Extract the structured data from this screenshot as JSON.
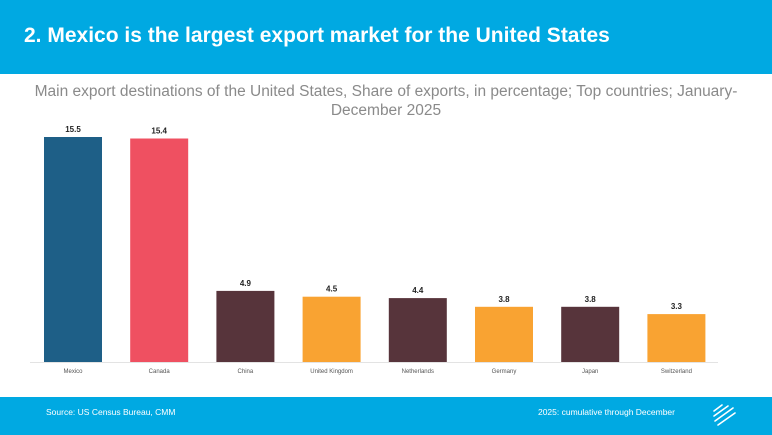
{
  "header": {
    "title": "2. Mexico is the largest export market for the United States"
  },
  "footer": {
    "source": "Source: US Census Bureau, CMM",
    "note": "2025: cumulative through December",
    "logo_icon": "diagonal-lines-logo"
  },
  "colors": {
    "header_bg": "#00a9e2",
    "mexico": "#1e5f87",
    "canada": "#ef5061",
    "dark": "#57343b",
    "orange": "#f9a332"
  },
  "chart_data": {
    "type": "bar",
    "title": "Main export destinations of the United States, Share of exports, in percentage; Top countries; January-December 2025",
    "xlabel": "",
    "ylabel": "",
    "ylim": [
      0,
      15.5
    ],
    "grid": false,
    "categories": [
      "Mexico",
      "Canada",
      "China",
      "United Kingdom",
      "Netherlands",
      "Germany",
      "Japan",
      "Switzerland"
    ],
    "values": [
      15.5,
      15.4,
      4.9,
      4.5,
      4.4,
      3.8,
      3.8,
      3.3
    ],
    "data_labels": [
      "15.5",
      "15.4",
      "4.9",
      "4.5",
      "4.4",
      "3.8",
      "3.8",
      "3.3"
    ],
    "bar_colors": [
      "#1e5f87",
      "#ef5061",
      "#57343b",
      "#f9a332",
      "#57343b",
      "#f9a332",
      "#57343b",
      "#f9a332"
    ]
  }
}
